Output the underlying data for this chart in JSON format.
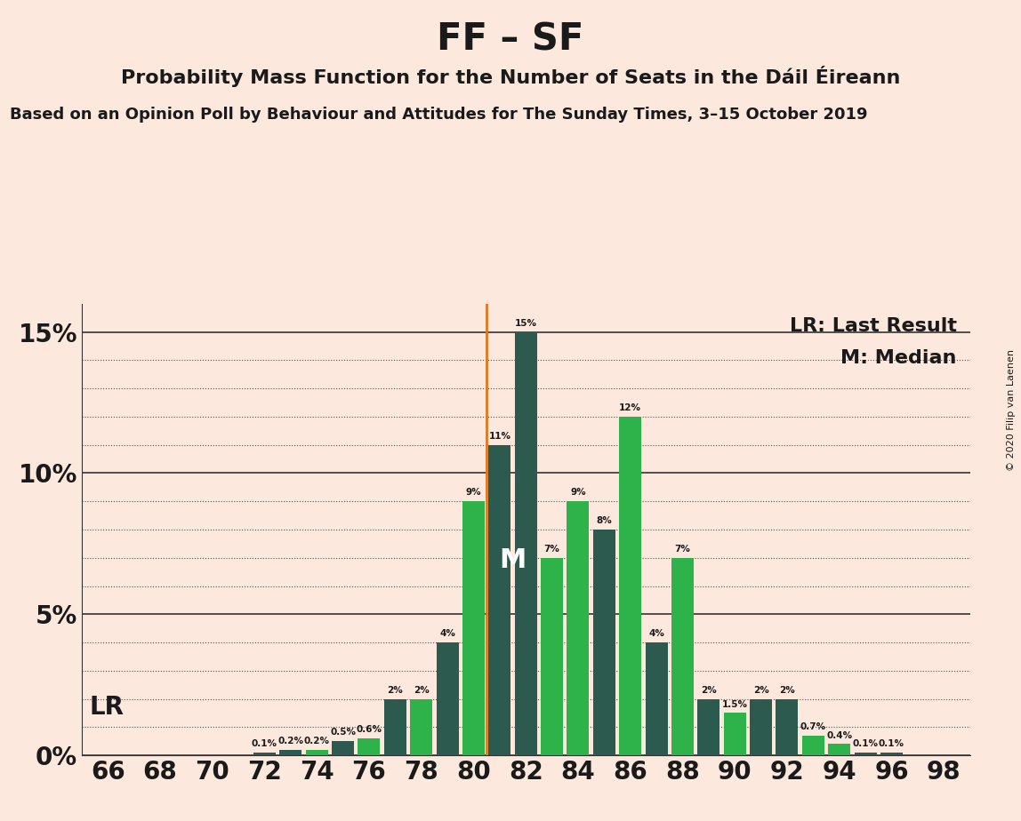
{
  "title": "FF – SF",
  "subtitle": "Probability Mass Function for the Number of Seats in the Dáil Éireann",
  "source": "Based on an Opinion Poll by Behaviour and Attitudes for The Sunday Times, 3–15 October 2019",
  "copyright": "© 2020 Filip van Laenen",
  "legend_lr": "LR: Last Result",
  "legend_m": "M: Median",
  "background_color": "#fce8dc",
  "bar_color_dark": "#2d5a4e",
  "bar_color_green": "#2db34a",
  "x_values": [
    66,
    67,
    68,
    69,
    70,
    71,
    72,
    73,
    74,
    75,
    76,
    77,
    78,
    79,
    80,
    81,
    82,
    83,
    84,
    85,
    86,
    87,
    88,
    89,
    90,
    91,
    92,
    93,
    94,
    95,
    96,
    97,
    98
  ],
  "y_values": [
    0.0,
    0.0,
    0.0,
    0.0,
    0.0,
    0.0,
    0.1,
    0.2,
    0.2,
    0.5,
    0.6,
    2.0,
    2.0,
    4.0,
    9.0,
    11.0,
    15.0,
    7.0,
    9.0,
    8.0,
    12.0,
    4.0,
    7.0,
    2.0,
    1.5,
    2.0,
    2.0,
    0.7,
    0.4,
    0.1,
    0.1,
    0.0,
    0.0
  ],
  "bar_colors": [
    "dark",
    "dark",
    "dark",
    "dark",
    "dark",
    "dark",
    "dark",
    "dark",
    "green",
    "dark",
    "green",
    "dark",
    "green",
    "dark",
    "green",
    "dark",
    "dark",
    "green",
    "green",
    "dark",
    "green",
    "dark",
    "green",
    "dark",
    "green",
    "dark",
    "dark",
    "green",
    "green",
    "dark",
    "dark",
    "dark",
    "dark"
  ],
  "lr_line_x": 80.5,
  "median_x": 82,
  "yticks": [
    0,
    5,
    10,
    15
  ],
  "ylim": [
    0,
    16
  ],
  "xlim": [
    65,
    99
  ],
  "title_fontsize": 30,
  "subtitle_fontsize": 16,
  "source_fontsize": 13,
  "legend_fontsize": 16,
  "ytick_fontsize": 20,
  "xtick_fontsize": 20
}
